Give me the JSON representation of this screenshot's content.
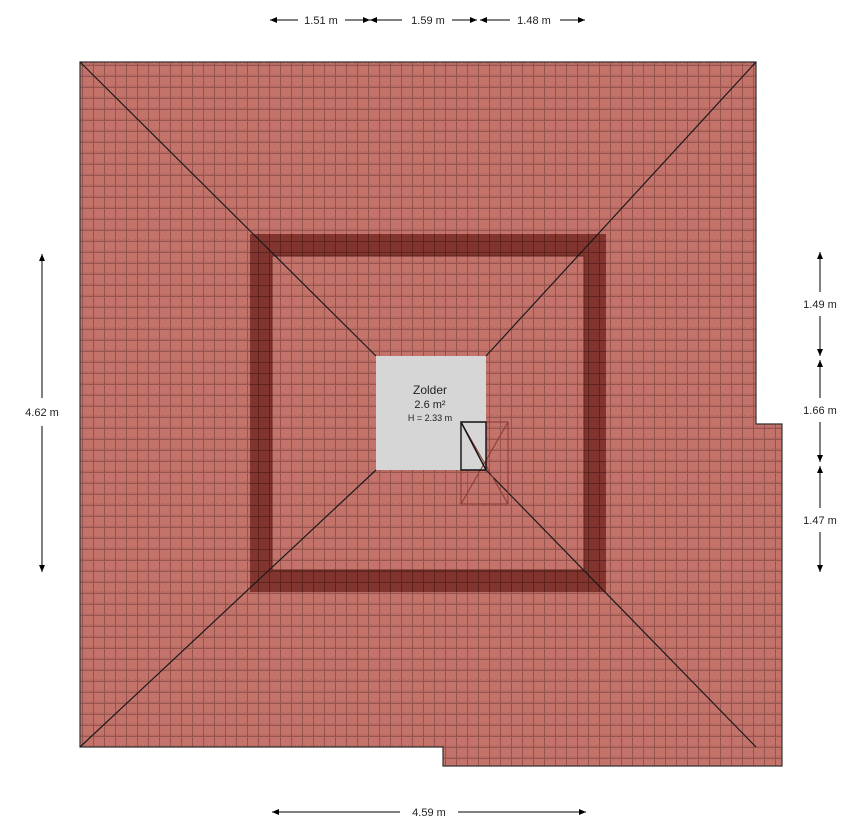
{
  "room": {
    "name": "Zolder",
    "area": "2.6 m²",
    "height": "H = 2.33 m"
  },
  "dimensions": {
    "top": [
      "1.51 m",
      "1.59 m",
      "1.48 m"
    ],
    "bottom": "4.59 m",
    "left": "4.62 m",
    "right": [
      "1.49 m",
      "1.66 m",
      "1.47 m"
    ]
  },
  "colors": {
    "roof_tile": "#c4736b",
    "roof_band": "#7a2e27",
    "room_floor": "#d6d6d6"
  }
}
